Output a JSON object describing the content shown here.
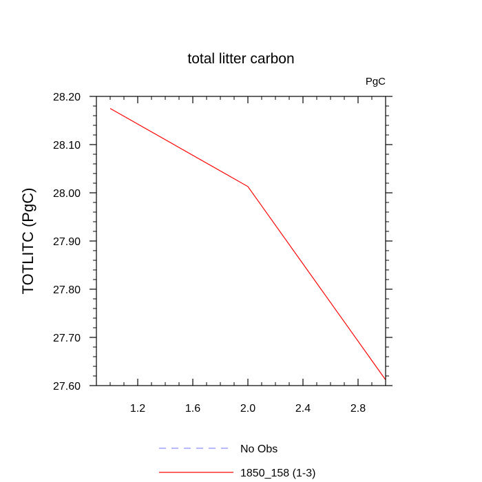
{
  "chart_data": {
    "type": "line",
    "title": "total litter carbon",
    "units_label": "PgC",
    "ylabel": "TOTLITC  (PgC)",
    "xlabel": "",
    "xlim": [
      0.9,
      3.0
    ],
    "ylim": [
      27.6,
      28.2
    ],
    "xticks": [
      1.2,
      1.6,
      2.0,
      2.4,
      2.8
    ],
    "xtick_labels": [
      "1.2",
      "1.6",
      "2.0",
      "2.4",
      "2.8"
    ],
    "yticks": [
      27.6,
      27.7,
      27.8,
      27.9,
      28.0,
      28.1,
      28.2
    ],
    "ytick_labels": [
      "27.60",
      "27.70",
      "27.80",
      "27.90",
      "28.00",
      "28.10",
      "28.20"
    ],
    "grid": false,
    "legend_position": "bottom",
    "series": [
      {
        "name": "No Obs",
        "color": "#8c8cff",
        "dash": "dashed",
        "x": [],
        "y": []
      },
      {
        "name": "1850_158 (1-3)",
        "color": "#ff0000",
        "dash": "solid",
        "x": [
          1.0,
          2.0,
          3.0
        ],
        "y": [
          28.175,
          28.013,
          27.612
        ]
      }
    ]
  }
}
